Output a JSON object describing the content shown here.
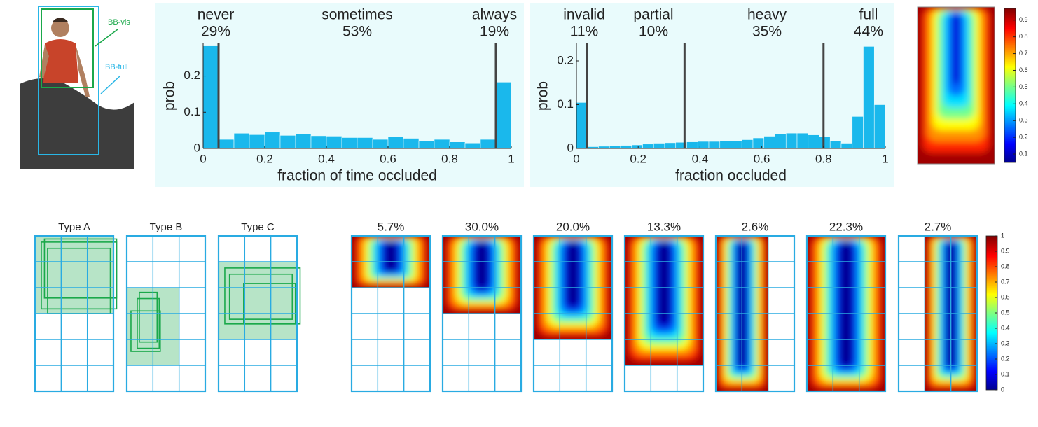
{
  "illustration": {
    "labels": [
      "BB-vis",
      "BB-full"
    ]
  },
  "chart_data": [
    {
      "type": "histogram",
      "xlabel": "fraction of time occluded",
      "ylabel": "prob",
      "bins": [
        0,
        0.05,
        0.1,
        0.15,
        0.2,
        0.25,
        0.3,
        0.35,
        0.4,
        0.45,
        0.5,
        0.55,
        0.6,
        0.65,
        0.7,
        0.75,
        0.8,
        0.85,
        0.9,
        0.95,
        1
      ],
      "values": [
        0.283,
        0.025,
        0.042,
        0.038,
        0.045,
        0.036,
        0.04,
        0.035,
        0.034,
        0.03,
        0.03,
        0.025,
        0.032,
        0.028,
        0.02,
        0.025,
        0.018,
        0.015,
        0.025,
        0.183
      ],
      "color": "#1ab8ec",
      "xlim": [
        0,
        1
      ],
      "ylim": [
        0,
        0.29
      ],
      "xticks": [
        0,
        0.2,
        0.4,
        0.6,
        0.8,
        1
      ],
      "yticks": [
        0,
        0.1,
        0.2
      ],
      "thresholds": [
        0.05,
        0.95
      ],
      "groups": [
        {
          "name": "never",
          "share": "29%"
        },
        {
          "name": "sometimes",
          "share": "53%"
        },
        {
          "name": "always",
          "share": "19%"
        }
      ]
    },
    {
      "type": "histogram",
      "xlabel": "fraction occluded",
      "ylabel": "prob",
      "bins": [
        0,
        0.0357,
        0.0714,
        0.1071,
        0.1429,
        0.1786,
        0.2143,
        0.25,
        0.2857,
        0.3214,
        0.3571,
        0.3929,
        0.4286,
        0.4643,
        0.5,
        0.5357,
        0.5714,
        0.6071,
        0.6429,
        0.6786,
        0.7143,
        0.75,
        0.7857,
        0.8214,
        0.8571,
        0.8929,
        0.9286,
        0.9643,
        1
      ],
      "values": [
        0.105,
        0.004,
        0.005,
        0.006,
        0.007,
        0.008,
        0.01,
        0.012,
        0.013,
        0.014,
        0.015,
        0.016,
        0.016,
        0.017,
        0.018,
        0.02,
        0.024,
        0.028,
        0.033,
        0.035,
        0.035,
        0.031,
        0.027,
        0.018,
        0.012,
        0.073,
        0.233,
        0.1
      ],
      "color": "#1ab8ec",
      "xlim": [
        0,
        1
      ],
      "ylim": [
        0,
        0.24
      ],
      "xticks": [
        0,
        0.2,
        0.4,
        0.6,
        0.8,
        1
      ],
      "yticks": [
        0,
        0.1,
        0.2
      ],
      "thresholds": [
        0.035,
        0.35,
        0.8
      ],
      "groups": [
        {
          "name": "invalid",
          "share": "11%"
        },
        {
          "name": "partial",
          "share": "10%"
        },
        {
          "name": "heavy",
          "share": "35%"
        },
        {
          "name": "full",
          "share": "44%"
        }
      ]
    }
  ],
  "heatmap": {
    "colorbar_ticks": [
      0.1,
      0.2,
      0.3,
      0.4,
      0.5,
      0.6,
      0.7,
      0.8,
      0.9
    ]
  },
  "types": [
    "Type A",
    "Type B",
    "Type C"
  ],
  "patterns": {
    "shares": [
      "5.7%",
      "30.0%",
      "20.0%",
      "13.3%",
      "2.6%",
      "22.3%",
      "2.7%"
    ],
    "colorbar_ticks": [
      0,
      0.1,
      0.2,
      0.3,
      0.4,
      0.5,
      0.6,
      0.7,
      0.8,
      0.9,
      1
    ]
  }
}
